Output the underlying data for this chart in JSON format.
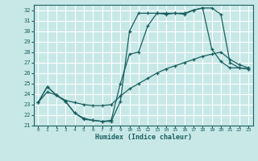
{
  "xlabel": "Humidex (Indice chaleur)",
  "bg_color": "#c8e8e8",
  "grid_color": "#ffffff",
  "line_color": "#1a5f5f",
  "xlim": [
    -0.5,
    23.5
  ],
  "ylim": [
    21,
    32.5
  ],
  "yticks": [
    21,
    22,
    23,
    24,
    25,
    26,
    27,
    28,
    29,
    30,
    31,
    32
  ],
  "xticks": [
    0,
    1,
    2,
    3,
    4,
    5,
    6,
    7,
    8,
    9,
    10,
    11,
    12,
    13,
    14,
    15,
    16,
    17,
    18,
    19,
    20,
    21,
    22,
    23
  ],
  "curve1_x": [
    0,
    1,
    2,
    3,
    4,
    5,
    6,
    7,
    8,
    9,
    10,
    11,
    12,
    13,
    14,
    15,
    16,
    17,
    18,
    19,
    20,
    21,
    22,
    23
  ],
  "curve1_y": [
    23.2,
    24.7,
    23.9,
    23.3,
    22.2,
    21.6,
    21.5,
    21.4,
    21.4,
    23.3,
    30.0,
    31.7,
    31.7,
    31.7,
    31.7,
    31.7,
    31.7,
    32.0,
    32.2,
    32.2,
    31.6,
    27.0,
    26.5,
    26.4
  ],
  "curve2_x": [
    0,
    1,
    2,
    3,
    4,
    5,
    6,
    7,
    8,
    9,
    10,
    11,
    12,
    13,
    14,
    15,
    16,
    17,
    18,
    19,
    20,
    21,
    22,
    23
  ],
  "curve2_y": [
    23.2,
    24.7,
    23.9,
    23.3,
    22.2,
    21.7,
    21.5,
    21.4,
    21.5,
    25.0,
    27.8,
    28.0,
    30.5,
    31.7,
    31.6,
    31.7,
    31.6,
    32.0,
    32.2,
    28.3,
    27.1,
    26.5,
    26.5,
    26.4
  ],
  "curve3_x": [
    0,
    1,
    2,
    3,
    4,
    5,
    6,
    7,
    8,
    9,
    10,
    11,
    12,
    13,
    14,
    15,
    16,
    17,
    18,
    19,
    20,
    21,
    22,
    23
  ],
  "curve3_y": [
    23.2,
    24.2,
    23.9,
    23.4,
    23.2,
    23.0,
    22.9,
    22.9,
    23.0,
    23.8,
    24.5,
    25.0,
    25.5,
    26.0,
    26.4,
    26.7,
    27.0,
    27.3,
    27.6,
    27.8,
    28.0,
    27.3,
    26.8,
    26.5
  ]
}
